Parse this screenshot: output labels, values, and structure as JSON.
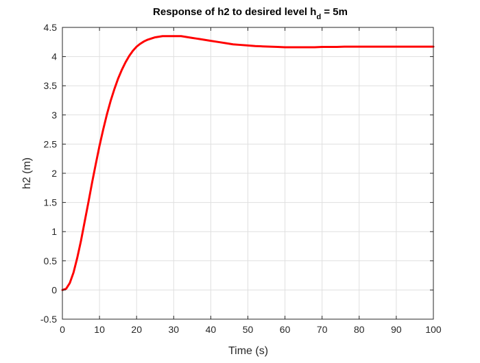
{
  "chart_data": {
    "type": "line",
    "title": {
      "text": "Response of h2 to desired level h",
      "subscript": "d",
      "suffix": " = 5m"
    },
    "xlabel": "Time (s)",
    "ylabel": "h2 (m)",
    "xlim": [
      0,
      100
    ],
    "ylim": [
      -0.5,
      4.5
    ],
    "xticks": [
      0,
      10,
      20,
      30,
      40,
      50,
      60,
      70,
      80,
      90,
      100
    ],
    "xtick_labels": [
      "0",
      "10",
      "20",
      "30",
      "40",
      "50",
      "60",
      "70",
      "80",
      "90",
      "100"
    ],
    "yticks": [
      -0.5,
      0,
      0.5,
      1,
      1.5,
      2,
      2.5,
      3,
      3.5,
      4,
      4.5
    ],
    "ytick_labels": [
      "-0.5",
      "0",
      "0.5",
      "1",
      "1.5",
      "2",
      "2.5",
      "3",
      "3.5",
      "4",
      "4.5"
    ],
    "grid": true,
    "box": true,
    "series": [
      {
        "color": "#ff0000",
        "x": [
          0,
          1,
          2,
          3,
          4,
          5,
          6,
          7,
          8,
          9,
          10,
          11,
          12,
          13,
          14,
          15,
          16,
          17,
          18,
          19,
          20,
          21,
          22,
          23,
          24,
          25,
          26,
          27,
          28,
          29,
          30,
          31,
          32,
          33,
          34,
          35,
          36,
          37,
          38,
          39,
          40,
          42,
          44,
          46,
          48,
          50,
          52,
          54,
          56,
          58,
          60,
          62,
          64,
          66,
          68,
          70,
          72,
          74,
          76,
          78,
          80,
          82,
          84,
          86,
          88,
          90,
          92,
          94,
          96,
          98,
          100
        ],
        "y": [
          0.0,
          0.02,
          0.12,
          0.3,
          0.55,
          0.84,
          1.17,
          1.5,
          1.84,
          2.16,
          2.47,
          2.75,
          3.01,
          3.24,
          3.44,
          3.62,
          3.77,
          3.9,
          4.01,
          4.1,
          4.17,
          4.22,
          4.26,
          4.29,
          4.31,
          4.33,
          4.34,
          4.35,
          4.35,
          4.35,
          4.35,
          4.35,
          4.35,
          4.34,
          4.33,
          4.32,
          4.31,
          4.3,
          4.29,
          4.28,
          4.27,
          4.25,
          4.23,
          4.21,
          4.2,
          4.19,
          4.18,
          4.175,
          4.17,
          4.165,
          4.16,
          4.16,
          4.16,
          4.16,
          4.16,
          4.165,
          4.165,
          4.165,
          4.17,
          4.17,
          4.17,
          4.17,
          4.17,
          4.17,
          4.17,
          4.17,
          4.17,
          4.17,
          4.17,
          4.17,
          4.17
        ]
      }
    ]
  }
}
